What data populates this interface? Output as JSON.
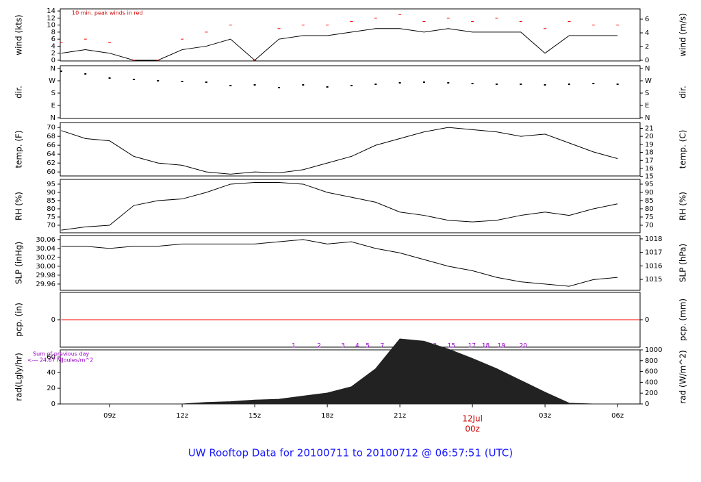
{
  "title": "UW Rooftop Data for 20100711  to  20100712 @ 06:57:51  (UTC)",
  "chart_data": [
    {
      "type": "line",
      "ylabel": "wind (kts)",
      "y2label": "wind (m/s)",
      "annotation": "10 min. peak winds in red",
      "xlim": [
        6.96,
        30.93
      ],
      "ylim": [
        -0.2,
        14.6
      ],
      "yticks": [
        0,
        2,
        4,
        6,
        8,
        10,
        12,
        14
      ],
      "y2lim": [
        -0.1,
        7.5
      ],
      "y2ticks": [
        0,
        2,
        4,
        6
      ],
      "x": [
        7,
        8,
        9,
        10,
        11,
        12,
        13,
        14,
        15,
        16,
        17,
        18,
        19,
        20,
        21,
        22,
        23,
        24,
        25,
        26,
        27,
        28,
        29,
        30
      ],
      "series": [
        {
          "name": "wind",
          "style": "line",
          "color": "#000000",
          "values": [
            2,
            3,
            2,
            0,
            0,
            3,
            4,
            6,
            0,
            6,
            7,
            7,
            8,
            9,
            9,
            8,
            9,
            8,
            8,
            8,
            2,
            7,
            7,
            7
          ]
        },
        {
          "name": "peak",
          "style": "dash",
          "color": "#ff0000",
          "values": [
            5,
            6,
            5,
            0,
            0,
            6,
            8,
            10,
            0,
            9,
            10,
            10,
            11,
            12,
            13,
            11,
            12,
            11,
            12,
            11,
            9,
            11,
            10,
            10
          ]
        }
      ]
    },
    {
      "type": "line",
      "ylabel": "dir.",
      "y2label": "dir.",
      "xlim": [
        6.96,
        30.93
      ],
      "ylim": [
        -5,
        380
      ],
      "yticks": [
        {
          "value": 0,
          "label": "N"
        },
        {
          "value": 90,
          "label": "E"
        },
        {
          "value": 180,
          "label": "S"
        },
        {
          "value": 270,
          "label": "W"
        },
        {
          "value": 360,
          "label": "N"
        }
      ],
      "y2lim": [
        -5,
        380
      ],
      "y2ticks": [
        {
          "value": 0,
          "label": "N"
        },
        {
          "value": 90,
          "label": "E"
        },
        {
          "value": 180,
          "label": "S"
        },
        {
          "value": 270,
          "label": "W"
        },
        {
          "value": 360,
          "label": "N"
        }
      ],
      "x": [
        7,
        8,
        9,
        10,
        11,
        12,
        13,
        14,
        15,
        16,
        17,
        18,
        19,
        20,
        21,
        22,
        23,
        24,
        25,
        26,
        27,
        28,
        29,
        30
      ],
      "series": [
        {
          "name": "direction",
          "style": "dot",
          "color": "#000000",
          "values": [
            340,
            320,
            290,
            280,
            270,
            265,
            260,
            235,
            240,
            220,
            240,
            225,
            235,
            245,
            255,
            260,
            255,
            250,
            245,
            245,
            240,
            245,
            250,
            245
          ]
        }
      ]
    },
    {
      "type": "line",
      "ylabel": "temp. (F)",
      "y2label": "temp. (C)",
      "xlim": [
        6.96,
        30.93
      ],
      "ylim": [
        59.1,
        71.1
      ],
      "yticks": [
        60,
        62,
        64,
        66,
        68,
        70
      ],
      "y2lim": [
        15.06,
        21.72
      ],
      "y2ticks": [
        15,
        16,
        17,
        18,
        19,
        20,
        21
      ],
      "x": [
        7,
        8,
        9,
        10,
        11,
        12,
        13,
        14,
        15,
        16,
        17,
        18,
        19,
        20,
        21,
        22,
        23,
        24,
        25,
        26,
        27,
        28,
        29,
        30
      ],
      "series": [
        {
          "name": "temperature",
          "style": "line",
          "color": "#000000",
          "values": [
            69.3,
            67.5,
            67,
            63.5,
            62,
            61.5,
            60,
            59.5,
            60,
            59.8,
            60.5,
            62,
            63.5,
            66,
            67.5,
            69,
            70,
            69.5,
            69,
            68,
            68.5,
            66.5,
            64.5,
            63
          ]
        }
      ]
    },
    {
      "type": "line",
      "ylabel": "RH (%)",
      "y2label": "RH (%)",
      "xlim": [
        6.96,
        30.93
      ],
      "ylim": [
        65.4,
        97.9
      ],
      "yticks": [
        70,
        75,
        80,
        85,
        90,
        95
      ],
      "y2lim": [
        65.4,
        97.9
      ],
      "y2ticks": [
        70,
        75,
        80,
        85,
        90,
        95
      ],
      "x": [
        7,
        8,
        9,
        10,
        11,
        12,
        13,
        14,
        15,
        16,
        17,
        18,
        19,
        20,
        21,
        22,
        23,
        24,
        25,
        26,
        27,
        28,
        29,
        30
      ],
      "series": [
        {
          "name": "humidity",
          "style": "line",
          "color": "#000000",
          "values": [
            67,
            69,
            70,
            82,
            85,
            86,
            90,
            95,
            96,
            96,
            95,
            90,
            87,
            84,
            78,
            76,
            73,
            72,
            73,
            76,
            78,
            76,
            80,
            83
          ]
        }
      ]
    },
    {
      "type": "line",
      "ylabel": "SLP (inHg)",
      "y2label": "SLP (hPa)",
      "xlim": [
        6.96,
        30.93
      ],
      "ylim": [
        29.946,
        30.069
      ],
      "yticks": [
        29.96,
        29.98,
        {
          "value": 30,
          "label": "30.00"
        },
        30.02,
        30.04,
        30.06
      ],
      "y2lim": [
        1014.19,
        1018.25
      ],
      "y2ticks": [
        1015,
        1016,
        1017,
        1018
      ],
      "x": [
        7,
        8,
        9,
        10,
        11,
        12,
        13,
        14,
        15,
        16,
        17,
        18,
        19,
        20,
        21,
        22,
        23,
        24,
        25,
        26,
        27,
        28,
        29,
        30
      ],
      "series": [
        {
          "name": "pressure",
          "style": "line",
          "color": "#000000",
          "values": [
            30.045,
            30.045,
            30.04,
            30.045,
            30.045,
            30.05,
            30.05,
            30.05,
            30.05,
            30.055,
            30.06,
            30.05,
            30.055,
            30.04,
            30.03,
            30.015,
            30.0,
            29.99,
            29.975,
            29.965,
            29.96,
            29.955,
            29.97,
            29.975
          ]
        }
      ]
    },
    {
      "type": "line",
      "ylabel": "pcp. (in)",
      "y2label": "pcp. (mm)",
      "xlim": [
        6.96,
        30.93
      ],
      "ylim": [
        -1,
        1
      ],
      "yticks": [
        0
      ],
      "y2lim": [
        -1,
        1
      ],
      "y2ticks": [
        0
      ],
      "x": [
        7,
        30.93
      ],
      "series": [
        {
          "name": "precipitation",
          "style": "line",
          "color": "#ff0000",
          "values": [
            0,
            0
          ]
        }
      ]
    },
    {
      "type": "line",
      "ylabel": "rad(Lgly/hr)",
      "y2label": "rad (W/m^2)",
      "xlim": [
        6.96,
        30.93
      ],
      "annotation": "Sum of previous day",
      "annotation2": "<--- 24.67 MJoules/m^2",
      "ylim": [
        0,
        69
      ],
      "yticks": [
        0,
        20,
        40,
        60
      ],
      "y2lim": [
        0,
        1000
      ],
      "y2ticks": [
        0,
        200,
        400,
        600,
        800,
        1000
      ],
      "markers": [
        {
          "value": 16.61,
          "label": "1"
        },
        {
          "value": 17.66,
          "label": "2"
        },
        {
          "value": 18.65,
          "label": "3"
        },
        {
          "value": 19.24,
          "label": "4"
        },
        {
          "value": 19.67,
          "label": "5"
        },
        {
          "value": 20.27,
          "label": "7"
        },
        {
          "value": 20.95,
          "label": "9"
        },
        {
          "value": 21.66,
          "label": "11"
        },
        {
          "value": 22.37,
          "label": "13"
        },
        {
          "value": 23.13,
          "label": "15"
        },
        {
          "value": 23.98,
          "label": "17"
        },
        {
          "value": 24.55,
          "label": "18"
        },
        {
          "value": 25.2,
          "label": "19"
        },
        {
          "value": 26.1,
          "label": "20"
        }
      ],
      "xticks": [
        {
          "value": 9,
          "label": "09z"
        },
        {
          "value": 12,
          "label": "12z"
        },
        {
          "value": 15,
          "label": "15z"
        },
        {
          "value": 18,
          "label": "18z"
        },
        {
          "value": 21,
          "label": "21z"
        },
        {
          "value": 24,
          "label": "00z"
        },
        {
          "value": 27,
          "label": "03z"
        },
        {
          "value": 30,
          "label": "06z"
        }
      ],
      "date_label": {
        "value": 24,
        "label": "12Jul"
      },
      "date_color": "#cc0000",
      "x": [
        7,
        8,
        9,
        10,
        11,
        12,
        13,
        14,
        15,
        16,
        17,
        18,
        19,
        20,
        21,
        22,
        23,
        24,
        25,
        26,
        27,
        28,
        29,
        30
      ],
      "series": [
        {
          "name": "radiation",
          "style": "area",
          "color": "#222222",
          "values": [
            0,
            0,
            0,
            0,
            0,
            0,
            2,
            3,
            5,
            6,
            10,
            14,
            22,
            45,
            83,
            80,
            70,
            58,
            45,
            30,
            15,
            1,
            0,
            0
          ]
        }
      ]
    }
  ]
}
